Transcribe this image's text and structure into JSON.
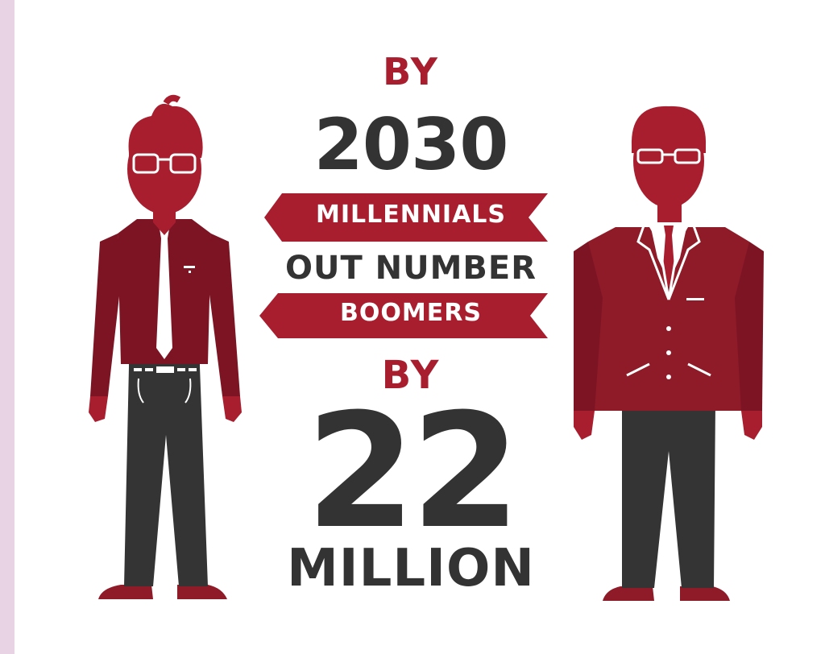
{
  "headline": {
    "line1": "BY",
    "year": "2030",
    "ribbon_top": "MILLENNIALS",
    "middle": "OUT NUMBER",
    "ribbon_bottom": "BOOMERS",
    "line_by": "BY",
    "number": "22",
    "unit": "MILLION"
  },
  "colors": {
    "accent_red": "#a81e2e",
    "dark_red": "#7d1424",
    "charcoal": "#333333",
    "side_strip": "#e8d3e5"
  },
  "figures": {
    "left": "millennial-figure",
    "right": "boomer-figure"
  }
}
